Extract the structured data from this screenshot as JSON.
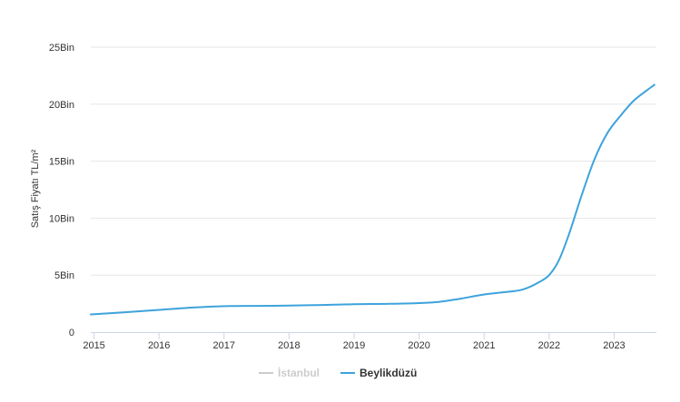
{
  "chart_data": {
    "type": "line",
    "title": "",
    "xlabel": "",
    "ylabel": "Satış Fiyatı TL/m²",
    "xlim": [
      2014.95,
      2023.65
    ],
    "ylim": [
      0,
      25000
    ],
    "x_ticks": [
      2015,
      2016,
      2017,
      2018,
      2019,
      2020,
      2021,
      2022,
      2023
    ],
    "x_tick_labels": [
      "2015",
      "2016",
      "2017",
      "2018",
      "2019",
      "2020",
      "2021",
      "2022",
      "2023"
    ],
    "y_ticks": [
      0,
      5000,
      10000,
      15000,
      20000,
      25000
    ],
    "y_tick_labels": [
      "0",
      "5Bin",
      "10Bin",
      "15Bin",
      "20Bin",
      "25Bin"
    ],
    "grid": true,
    "legend_position": "bottom",
    "series": [
      {
        "name": "İstanbul",
        "color": "#cccccc",
        "visible": false,
        "x": [],
        "y": []
      },
      {
        "name": "Beylikdüzü",
        "color": "#3ea3dc",
        "visible": true,
        "x": [
          2014.95,
          2015.5,
          2016.0,
          2016.5,
          2017.0,
          2017.5,
          2018.0,
          2018.5,
          2019.0,
          2019.5,
          2020.0,
          2020.3,
          2020.6,
          2021.0,
          2021.3,
          2021.6,
          2021.85,
          2022.0,
          2022.15,
          2022.3,
          2022.5,
          2022.7,
          2022.9,
          2023.1,
          2023.3,
          2023.5,
          2023.62
        ],
        "y": [
          1550,
          1750,
          1950,
          2150,
          2280,
          2300,
          2330,
          2380,
          2450,
          2480,
          2550,
          2650,
          2900,
          3300,
          3500,
          3750,
          4400,
          5000,
          6300,
          8500,
          12000,
          15200,
          17500,
          19000,
          20300,
          21200,
          21700
        ]
      }
    ]
  }
}
